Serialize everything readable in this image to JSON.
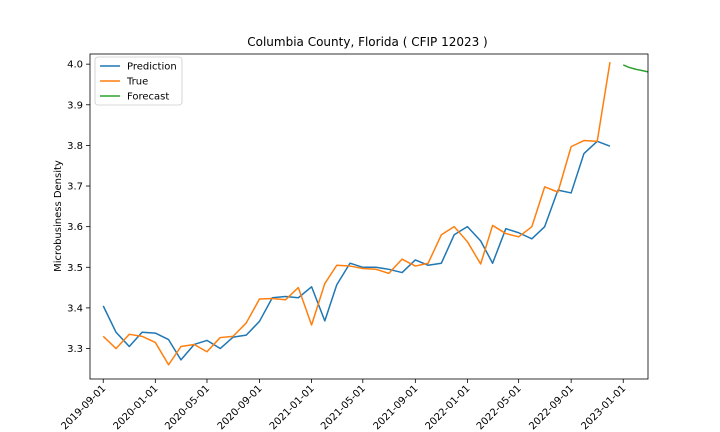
{
  "chart_data": {
    "type": "line",
    "title": "Columbia County, Florida ( CFIP 12023 )",
    "xlabel": "",
    "ylabel": "Microbusiness Density",
    "xlim": [
      "2019-08-01",
      "2023-02-28"
    ],
    "ylim": [
      3.225,
      4.025
    ],
    "x_ticks": [
      "2019-09-01",
      "2020-01-01",
      "2020-05-01",
      "2020-09-01",
      "2021-01-01",
      "2021-05-01",
      "2021-09-01",
      "2022-01-01",
      "2022-05-01",
      "2022-09-01",
      "2023-01-01"
    ],
    "y_ticks": [
      3.3,
      3.4,
      3.5,
      3.6,
      3.7,
      3.8,
      3.9,
      4.0
    ],
    "y_tick_labels": [
      "3.3",
      "3.4",
      "3.5",
      "3.6",
      "3.7",
      "3.8",
      "3.9",
      "4.0"
    ],
    "grid": false,
    "legend_position": "upper-left",
    "series": [
      {
        "name": "Prediction",
        "color": "#1f77b4",
        "points": [
          [
            "2019-09-01",
            3.405
          ],
          [
            "2019-10-01",
            3.34
          ],
          [
            "2019-11-01",
            3.305
          ],
          [
            "2019-12-01",
            3.34
          ],
          [
            "2020-01-01",
            3.338
          ],
          [
            "2020-02-01",
            3.322
          ],
          [
            "2020-03-01",
            3.272
          ],
          [
            "2020-04-01",
            3.31
          ],
          [
            "2020-05-01",
            3.32
          ],
          [
            "2020-06-01",
            3.3
          ],
          [
            "2020-07-01",
            3.328
          ],
          [
            "2020-08-01",
            3.333
          ],
          [
            "2020-09-01",
            3.367
          ],
          [
            "2020-10-01",
            3.425
          ],
          [
            "2020-11-01",
            3.428
          ],
          [
            "2020-12-01",
            3.425
          ],
          [
            "2021-01-01",
            3.452
          ],
          [
            "2021-02-01",
            3.368
          ],
          [
            "2021-03-01",
            3.457
          ],
          [
            "2021-04-01",
            3.51
          ],
          [
            "2021-05-01",
            3.5
          ],
          [
            "2021-06-01",
            3.5
          ],
          [
            "2021-07-01",
            3.495
          ],
          [
            "2021-08-01",
            3.487
          ],
          [
            "2021-09-01",
            3.518
          ],
          [
            "2021-10-01",
            3.505
          ],
          [
            "2021-11-01",
            3.51
          ],
          [
            "2021-12-01",
            3.58
          ],
          [
            "2022-01-01",
            3.6
          ],
          [
            "2022-02-01",
            3.565
          ],
          [
            "2022-03-01",
            3.51
          ],
          [
            "2022-04-01",
            3.595
          ],
          [
            "2022-05-01",
            3.585
          ],
          [
            "2022-06-01",
            3.57
          ],
          [
            "2022-07-01",
            3.6
          ],
          [
            "2022-08-01",
            3.69
          ],
          [
            "2022-09-01",
            3.683
          ],
          [
            "2022-10-01",
            3.78
          ],
          [
            "2022-11-01",
            3.81
          ],
          [
            "2022-12-01",
            3.798
          ]
        ]
      },
      {
        "name": "True",
        "color": "#ff7f0e",
        "points": [
          [
            "2019-09-01",
            3.33
          ],
          [
            "2019-10-01",
            3.3
          ],
          [
            "2019-11-01",
            3.335
          ],
          [
            "2019-12-01",
            3.33
          ],
          [
            "2020-01-01",
            3.315
          ],
          [
            "2020-02-01",
            3.26
          ],
          [
            "2020-03-01",
            3.305
          ],
          [
            "2020-04-01",
            3.31
          ],
          [
            "2020-05-01",
            3.292
          ],
          [
            "2020-06-01",
            3.327
          ],
          [
            "2020-07-01",
            3.33
          ],
          [
            "2020-08-01",
            3.363
          ],
          [
            "2020-09-01",
            3.422
          ],
          [
            "2020-10-01",
            3.423
          ],
          [
            "2020-11-01",
            3.42
          ],
          [
            "2020-12-01",
            3.45
          ],
          [
            "2021-01-01",
            3.358
          ],
          [
            "2021-02-01",
            3.46
          ],
          [
            "2021-03-01",
            3.505
          ],
          [
            "2021-04-01",
            3.503
          ],
          [
            "2021-05-01",
            3.497
          ],
          [
            "2021-06-01",
            3.495
          ],
          [
            "2021-07-01",
            3.485
          ],
          [
            "2021-08-01",
            3.52
          ],
          [
            "2021-09-01",
            3.503
          ],
          [
            "2021-10-01",
            3.51
          ],
          [
            "2021-11-01",
            3.58
          ],
          [
            "2021-12-01",
            3.6
          ],
          [
            "2022-01-01",
            3.563
          ],
          [
            "2022-02-01",
            3.508
          ],
          [
            "2022-03-01",
            3.603
          ],
          [
            "2022-04-01",
            3.583
          ],
          [
            "2022-05-01",
            3.575
          ],
          [
            "2022-06-01",
            3.6
          ],
          [
            "2022-07-01",
            3.698
          ],
          [
            "2022-08-01",
            3.685
          ],
          [
            "2022-09-01",
            3.797
          ],
          [
            "2022-10-01",
            3.812
          ],
          [
            "2022-11-01",
            3.81
          ],
          [
            "2022-12-01",
            4.005
          ]
        ]
      },
      {
        "name": "Forecast",
        "color": "#2ca02c",
        "points": [
          [
            "2023-01-01",
            3.998
          ],
          [
            "2023-01-15",
            3.992
          ],
          [
            "2023-02-01",
            3.987
          ],
          [
            "2023-02-15",
            3.984
          ],
          [
            "2023-02-28",
            3.981
          ]
        ]
      }
    ]
  }
}
